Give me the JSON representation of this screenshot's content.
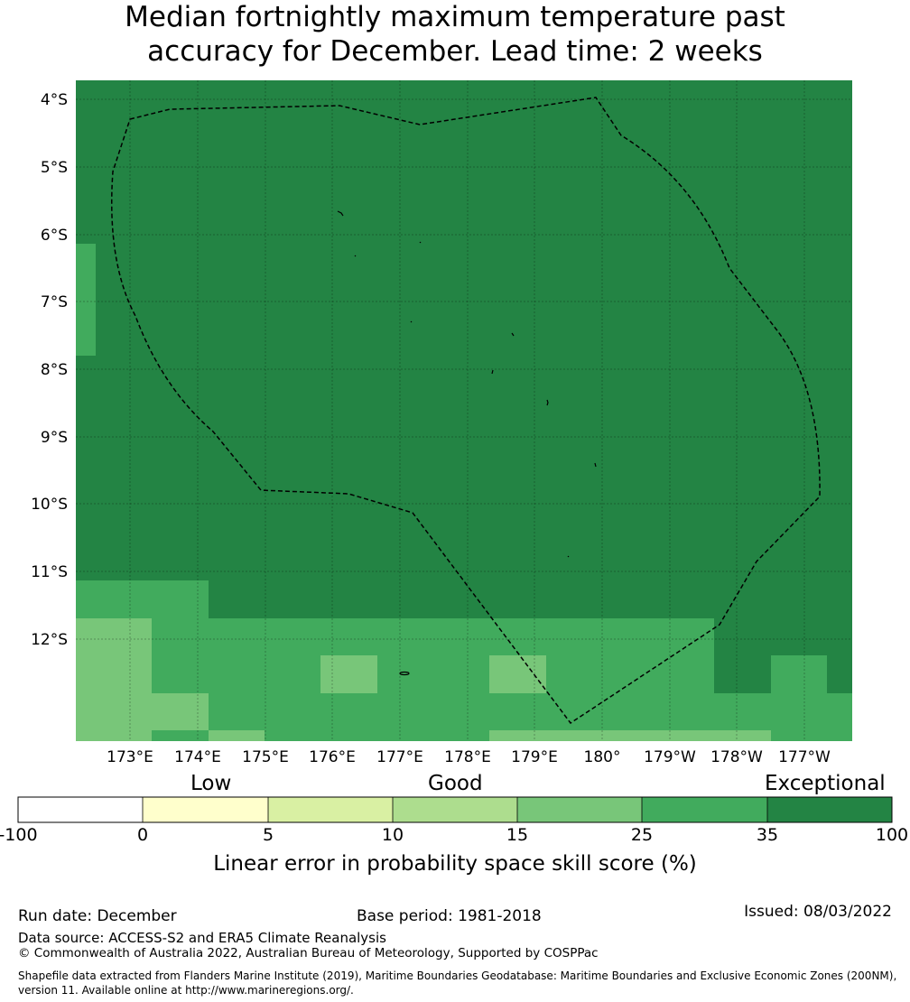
{
  "title": {
    "line1": "Median fortnightly maximum temperature past",
    "line2": "accuracy for December. Lead time: 2 weeks"
  },
  "map": {
    "lat_ticks": [
      "4°S",
      "5°S",
      "6°S",
      "7°S",
      "8°S",
      "9°S",
      "10°S",
      "11°S",
      "12°S"
    ],
    "lon_ticks": [
      "173°E",
      "174°E",
      "175°E",
      "176°E",
      "177°E",
      "178°E",
      "179°E",
      "180°",
      "179°W",
      "178°W",
      "177°W"
    ],
    "colors": {
      "exceptional": "#238444",
      "very_good": "#41ab5d",
      "good_high": "#78c679",
      "good": "#addd8e",
      "low_high": "#d9f0a3",
      "low": "#ffffcc",
      "none": "#ffffff"
    },
    "boundary_style": "dashed black EEZ boundary"
  },
  "colorbar": {
    "categories": [
      "Low",
      "Good",
      "Exceptional"
    ],
    "ticks": [
      "-100",
      "0",
      "5",
      "10",
      "15",
      "25",
      "35",
      "100"
    ],
    "colors": [
      "#ffffff",
      "#ffffcc",
      "#d9f0a3",
      "#addd8e",
      "#78c679",
      "#41ab5d",
      "#238444"
    ],
    "label": "Linear error in probability space skill score (%)"
  },
  "footer": {
    "run_date": "Run date: December",
    "base_period": "Base period: 1981-2018",
    "issued": "Issued: 08/03/2022",
    "data_source": "Data source: ACCESS-S2 and ERA5 Climate Reanalysis",
    "copyright": "© Commonwealth of Australia 2022, Australian Bureau of Meteorology, Supported by COSPPac",
    "shapefile_line1": "Shapefile data extracted from Flanders Marine Institute (2019), Maritime Boundaries Geodatabase: Maritime Boundaries and Exclusive Economic Zones (200NM),",
    "shapefile_line2": "version 11. Available online at http://www.marineregions.org/."
  }
}
